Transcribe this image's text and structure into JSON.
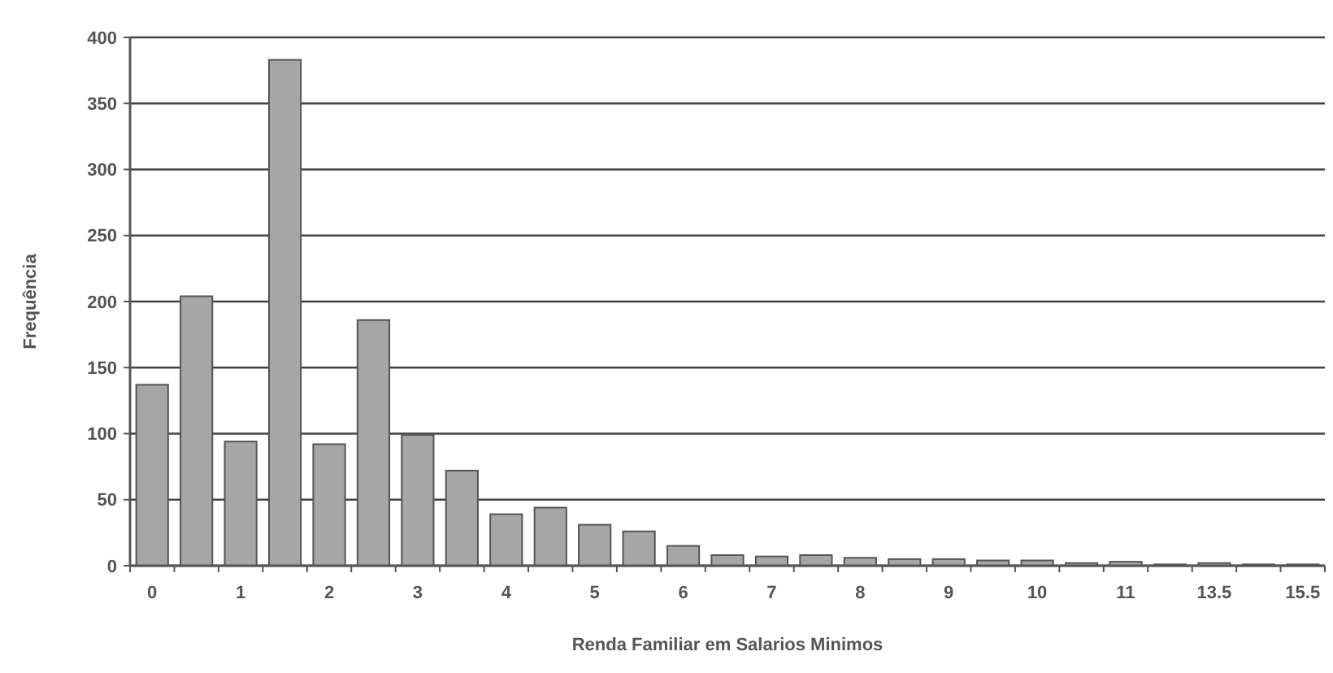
{
  "chart_data": {
    "type": "bar",
    "xlabel": "Renda Familiar em Salarios Minimos",
    "ylabel": "Frequência",
    "categories": [
      "0",
      null,
      "1",
      null,
      "2",
      null,
      "3",
      null,
      "4",
      null,
      "5",
      null,
      "6",
      null,
      "7",
      null,
      "8",
      null,
      "9",
      null,
      "10",
      null,
      "11",
      null,
      "13.5",
      null,
      "15.5"
    ],
    "values": [
      137,
      204,
      94,
      383,
      92,
      186,
      99,
      72,
      39,
      44,
      31,
      26,
      15,
      8,
      7,
      8,
      6,
      5,
      5,
      4,
      4,
      2,
      3,
      1,
      2,
      1,
      1
    ],
    "color": "#a6a6a6",
    "ylim": [
      0,
      400
    ],
    "yticks": [
      0,
      50,
      100,
      150,
      200,
      250,
      300,
      350,
      400
    ],
    "grid": "y"
  }
}
